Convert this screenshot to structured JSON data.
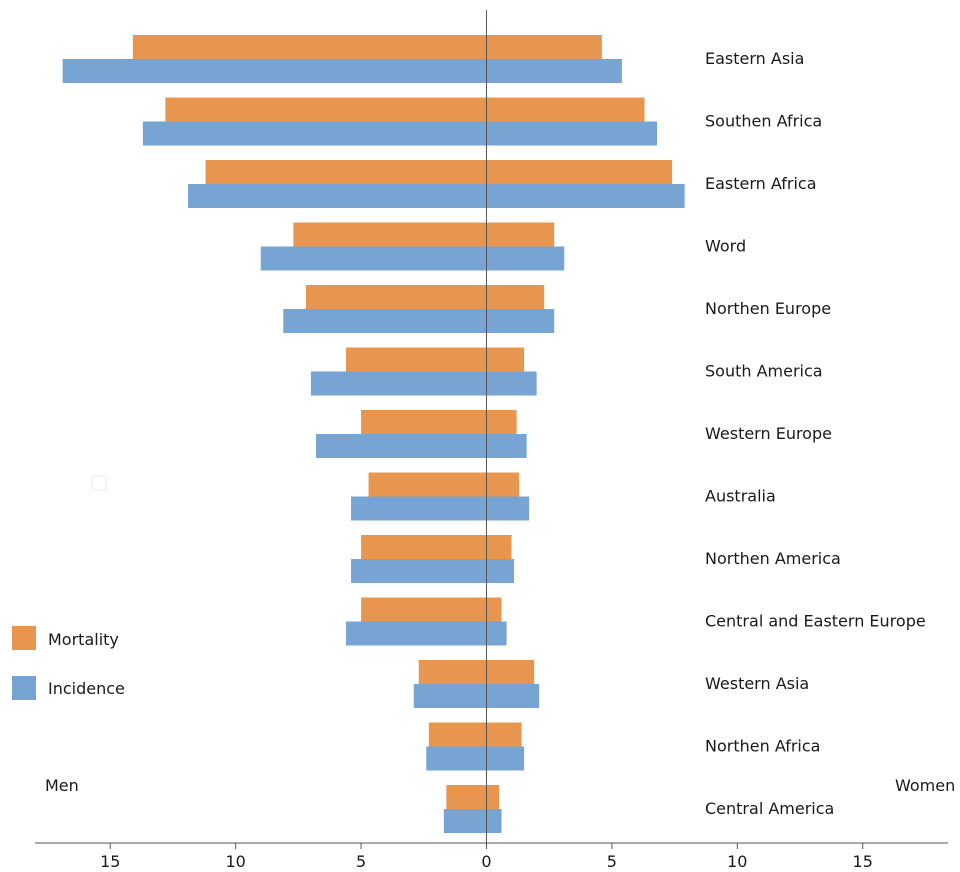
{
  "chart_data": {
    "type": "bar",
    "orientation": "horizontal",
    "layout": "population-pyramid",
    "categories": [
      "Eastern Asia",
      "Southen Africa",
      "Eastern Africa",
      "Word",
      "Northen Europe",
      "South America",
      "Western Europe",
      "Australia",
      "Northen America",
      "Central and Eastern Europe",
      "Western Asia",
      "Northen Africa",
      "Central America"
    ],
    "side_labels": {
      "left": "Men",
      "right": "Women"
    },
    "series": [
      {
        "name": "Mortality",
        "color": "#e8964f",
        "men": [
          14.1,
          12.8,
          11.2,
          7.7,
          7.2,
          5.6,
          5.0,
          4.7,
          5.0,
          5.0,
          2.7,
          2.3,
          1.6
        ],
        "women": [
          4.6,
          6.3,
          7.4,
          2.7,
          2.3,
          1.5,
          1.2,
          1.3,
          1.0,
          0.6,
          1.9,
          1.4,
          0.5
        ]
      },
      {
        "name": "Incidence",
        "color": "#78a4d4",
        "men": [
          16.9,
          13.7,
          11.9,
          9.0,
          8.1,
          7.0,
          6.8,
          5.4,
          5.4,
          5.6,
          2.9,
          2.4,
          1.7
        ],
        "women": [
          5.4,
          6.8,
          7.9,
          3.1,
          2.7,
          2.0,
          1.6,
          1.7,
          1.1,
          0.8,
          2.1,
          1.5,
          0.6
        ]
      }
    ],
    "x_ticks": [
      "15",
      "10",
      "5",
      "0",
      "5",
      "10",
      "15"
    ],
    "x_tick_values": [
      -15,
      -10,
      -5,
      0,
      5,
      10,
      15
    ],
    "xlim": [
      -18,
      18.4
    ],
    "legend_position": "left",
    "grid": false
  }
}
